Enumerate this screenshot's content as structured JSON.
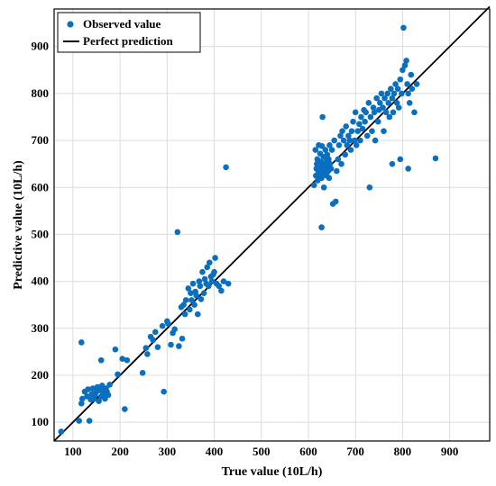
{
  "chart_data": {
    "type": "scatter",
    "xlabel": "True value (10L/h)",
    "ylabel": "Predictive value (10L/h)",
    "xlim": [
      60,
      985
    ],
    "ylim": [
      60,
      980
    ],
    "xticks": [
      100,
      200,
      300,
      400,
      500,
      600,
      700,
      800,
      900
    ],
    "yticks": [
      100,
      200,
      300,
      400,
      500,
      600,
      700,
      800,
      900
    ],
    "grid": true,
    "legend_position": "top-left",
    "colors": {
      "points": "#0a6fbf",
      "line": "#000000",
      "grid": "#dcdcdc"
    },
    "series": [
      {
        "name": "Observed value",
        "points": [
          [
            75,
            80
          ],
          [
            113,
            103
          ],
          [
            118,
            270
          ],
          [
            118,
            140
          ],
          [
            120,
            150
          ],
          [
            125,
            165
          ],
          [
            130,
            155
          ],
          [
            132,
            170
          ],
          [
            135,
            103
          ],
          [
            138,
            148
          ],
          [
            140,
            160
          ],
          [
            142,
            172
          ],
          [
            145,
            150
          ],
          [
            147,
            158
          ],
          [
            150,
            165
          ],
          [
            152,
            175
          ],
          [
            155,
            145
          ],
          [
            157,
            168
          ],
          [
            160,
            155
          ],
          [
            162,
            178
          ],
          [
            165,
            160
          ],
          [
            168,
            150
          ],
          [
            170,
            172
          ],
          [
            172,
            165
          ],
          [
            175,
            158
          ],
          [
            178,
            180
          ],
          [
            160,
            232
          ],
          [
            168,
            170
          ],
          [
            190,
            255
          ],
          [
            195,
            202
          ],
          [
            210,
            128
          ],
          [
            215,
            232
          ],
          [
            205,
            235
          ],
          [
            248,
            205
          ],
          [
            255,
            258
          ],
          [
            258,
            245
          ],
          [
            265,
            282
          ],
          [
            270,
            275
          ],
          [
            275,
            292
          ],
          [
            280,
            260
          ],
          [
            290,
            305
          ],
          [
            293,
            165
          ],
          [
            300,
            315
          ],
          [
            302,
            310
          ],
          [
            308,
            265
          ],
          [
            312,
            290
          ],
          [
            316,
            298
          ],
          [
            322,
            505
          ],
          [
            325,
            262
          ],
          [
            330,
            345
          ],
          [
            332,
            278
          ],
          [
            335,
            350
          ],
          [
            338,
            330
          ],
          [
            340,
            360
          ],
          [
            345,
            385
          ],
          [
            348,
            340
          ],
          [
            350,
            375
          ],
          [
            352,
            360
          ],
          [
            355,
            395
          ],
          [
            358,
            350
          ],
          [
            360,
            378
          ],
          [
            362,
            370
          ],
          [
            365,
            330
          ],
          [
            368,
            400
          ],
          [
            370,
            390
          ],
          [
            372,
            362
          ],
          [
            375,
            420
          ],
          [
            378,
            375
          ],
          [
            380,
            405
          ],
          [
            383,
            395
          ],
          [
            385,
            430
          ],
          [
            388,
            390
          ],
          [
            390,
            440
          ],
          [
            393,
            410
          ],
          [
            395,
            400
          ],
          [
            398,
            415
          ],
          [
            400,
            420
          ],
          [
            402,
            450
          ],
          [
            405,
            395
          ],
          [
            410,
            390
          ],
          [
            415,
            380
          ],
          [
            420,
            400
          ],
          [
            425,
            643
          ],
          [
            430,
            395
          ],
          [
            612,
            605
          ],
          [
            615,
            680
          ],
          [
            616,
            625
          ],
          [
            617,
            640
          ],
          [
            618,
            650
          ],
          [
            619,
            660
          ],
          [
            620,
            615
          ],
          [
            621,
            635
          ],
          [
            622,
            690
          ],
          [
            623,
            645
          ],
          [
            624,
            628
          ],
          [
            625,
            672
          ],
          [
            626,
            655
          ],
          [
            627,
            640
          ],
          [
            628,
            620
          ],
          [
            629,
            688
          ],
          [
            630,
            632
          ],
          [
            631,
            650
          ],
          [
            632,
            665
          ],
          [
            633,
            600
          ],
          [
            634,
            645
          ],
          [
            635,
            630
          ],
          [
            636,
            680
          ],
          [
            637,
            640
          ],
          [
            638,
            655
          ],
          [
            639,
            625
          ],
          [
            640,
            670
          ],
          [
            641,
            648
          ],
          [
            642,
            635
          ],
          [
            643,
            660
          ],
          [
            644,
            620
          ],
          [
            645,
            690
          ],
          [
            646,
            650
          ],
          [
            648,
            640
          ],
          [
            650,
            680
          ],
          [
            652,
            565
          ],
          [
            655,
            700
          ],
          [
            658,
            570
          ],
          [
            660,
            635
          ],
          [
            663,
            660
          ],
          [
            665,
            690
          ],
          [
            668,
            710
          ],
          [
            670,
            650
          ],
          [
            672,
            720
          ],
          [
            675,
            700
          ],
          [
            678,
            670
          ],
          [
            680,
            730
          ],
          [
            682,
            690
          ],
          [
            685,
            710
          ],
          [
            688,
            700
          ],
          [
            690,
            680
          ],
          [
            692,
            720
          ],
          [
            695,
            740
          ],
          [
            698,
            700
          ],
          [
            700,
            760
          ],
          [
            702,
            690
          ],
          [
            705,
            720
          ],
          [
            708,
            735
          ],
          [
            710,
            700
          ],
          [
            712,
            750
          ],
          [
            715,
            725
          ],
          [
            718,
            765
          ],
          [
            720,
            740
          ],
          [
            722,
            760
          ],
          [
            725,
            710
          ],
          [
            728,
            780
          ],
          [
            730,
            600
          ],
          [
            732,
            750
          ],
          [
            735,
            720
          ],
          [
            738,
            770
          ],
          [
            740,
            760
          ],
          [
            742,
            700
          ],
          [
            745,
            790
          ],
          [
            748,
            740
          ],
          [
            750,
            765
          ],
          [
            752,
            780
          ],
          [
            755,
            800
          ],
          [
            758,
            770
          ],
          [
            760,
            720
          ],
          [
            762,
            790
          ],
          [
            765,
            760
          ],
          [
            768,
            800
          ],
          [
            770,
            780
          ],
          [
            772,
            750
          ],
          [
            775,
            810
          ],
          [
            778,
            790
          ],
          [
            780,
            760
          ],
          [
            782,
            800
          ],
          [
            785,
            820
          ],
          [
            788,
            780
          ],
          [
            790,
            810
          ],
          [
            792,
            770
          ],
          [
            795,
            830
          ],
          [
            798,
            800
          ],
          [
            800,
            850
          ],
          [
            802,
            940
          ],
          [
            805,
            860
          ],
          [
            808,
            870
          ],
          [
            810,
            820
          ],
          [
            812,
            800
          ],
          [
            815,
            780
          ],
          [
            818,
            840
          ],
          [
            820,
            810
          ],
          [
            825,
            760
          ],
          [
            830,
            820
          ],
          [
            778,
            650
          ],
          [
            795,
            660
          ],
          [
            812,
            640
          ],
          [
            870,
            662
          ],
          [
            628,
            515
          ],
          [
            630,
            750
          ]
        ]
      },
      {
        "name": "Perfect prediction",
        "type": "line",
        "points": [
          [
            60,
            60
          ],
          [
            985,
            985
          ]
        ]
      }
    ]
  }
}
